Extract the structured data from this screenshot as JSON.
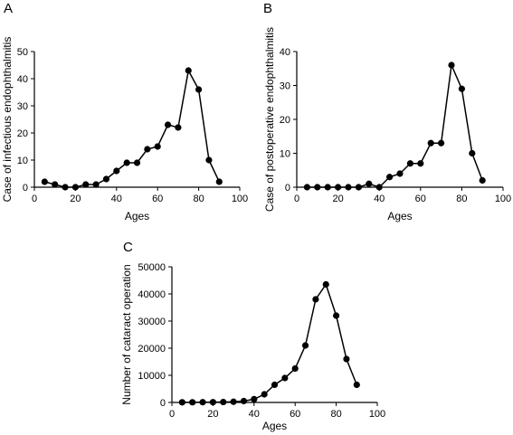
{
  "chart_data": [
    {
      "panel": "A",
      "type": "line",
      "xlabel": "Ages",
      "ylabel": "Case of infectious endophthalmitis",
      "xlim": [
        0,
        100
      ],
      "ylim": [
        0,
        50
      ],
      "xticks": [
        0,
        20,
        40,
        60,
        80,
        100
      ],
      "yticks": [
        0,
        10,
        20,
        30,
        40,
        50
      ],
      "grid": false,
      "series": [
        {
          "x": [
            5,
            10,
            15,
            20,
            25,
            30,
            35,
            40,
            45,
            50,
            55,
            60,
            65,
            70,
            75,
            80,
            85,
            90
          ],
          "y": [
            2,
            1,
            0,
            0,
            1,
            1,
            3,
            6,
            9,
            9,
            14,
            15,
            23,
            22,
            43,
            36,
            10,
            2
          ]
        }
      ]
    },
    {
      "panel": "B",
      "type": "line",
      "xlabel": "Ages",
      "ylabel": "Case of postoperative endophthalmitis",
      "xlim": [
        0,
        100
      ],
      "ylim": [
        0,
        40
      ],
      "xticks": [
        0,
        20,
        40,
        60,
        80,
        100
      ],
      "yticks": [
        0,
        10,
        20,
        30,
        40
      ],
      "grid": false,
      "series": [
        {
          "x": [
            5,
            10,
            15,
            20,
            25,
            30,
            35,
            40,
            45,
            50,
            55,
            60,
            65,
            70,
            75,
            80,
            85,
            90
          ],
          "y": [
            0,
            0,
            0,
            0,
            0,
            0,
            1,
            0,
            3,
            4,
            7,
            7,
            13,
            13,
            36,
            29,
            10,
            2
          ]
        }
      ]
    },
    {
      "panel": "C",
      "type": "line",
      "xlabel": "Ages",
      "ylabel": "Number of cataract operation",
      "xlim": [
        0,
        100
      ],
      "ylim": [
        0,
        50000
      ],
      "xticks": [
        0,
        20,
        40,
        60,
        80,
        100
      ],
      "yticks": [
        0,
        10000,
        20000,
        30000,
        40000,
        50000
      ],
      "grid": false,
      "series": [
        {
          "x": [
            5,
            10,
            15,
            20,
            25,
            30,
            35,
            40,
            45,
            50,
            55,
            60,
            65,
            70,
            75,
            80,
            85,
            90
          ],
          "y": [
            50,
            60,
            80,
            100,
            150,
            250,
            500,
            1200,
            3000,
            6500,
            9000,
            12500,
            21000,
            38000,
            43500,
            32000,
            16000,
            6500
          ]
        }
      ]
    }
  ]
}
